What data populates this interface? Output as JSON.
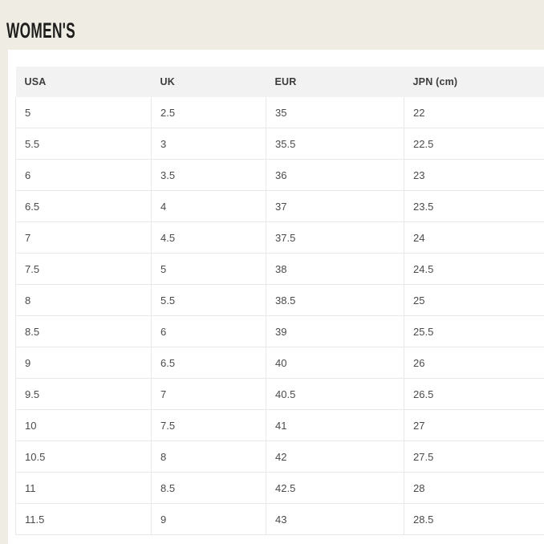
{
  "page": {
    "title": "WOMEN'S"
  },
  "chart_data": {
    "type": "table",
    "title": "WOMEN'S",
    "columns": [
      "USA",
      "UK",
      "EUR",
      "JPN (cm)"
    ],
    "rows": [
      [
        "5",
        "2.5",
        "35",
        "22"
      ],
      [
        "5.5",
        "3",
        "35.5",
        "22.5"
      ],
      [
        "6",
        "3.5",
        "36",
        "23"
      ],
      [
        "6.5",
        "4",
        "37",
        "23.5"
      ],
      [
        "7",
        "4.5",
        "37.5",
        "24"
      ],
      [
        "7.5",
        "5",
        "38",
        "24.5"
      ],
      [
        "8",
        "5.5",
        "38.5",
        "25"
      ],
      [
        "8.5",
        "6",
        "39",
        "25.5"
      ],
      [
        "9",
        "6.5",
        "40",
        "26"
      ],
      [
        "9.5",
        "7",
        "40.5",
        "26.5"
      ],
      [
        "10",
        "7.5",
        "41",
        "27"
      ],
      [
        "10.5",
        "8",
        "42",
        "27.5"
      ],
      [
        "11",
        "8.5",
        "42.5",
        "28"
      ],
      [
        "11.5",
        "9",
        "43",
        "28.5"
      ]
    ]
  },
  "colors": {
    "background": "#efece4",
    "panel": "#ffffff",
    "header_bg": "#f2f2f2",
    "border": "#e8e8e8",
    "title_text": "#1d1d1b",
    "header_text": "#3c3c3c",
    "cell_text": "#4a4a4a"
  }
}
